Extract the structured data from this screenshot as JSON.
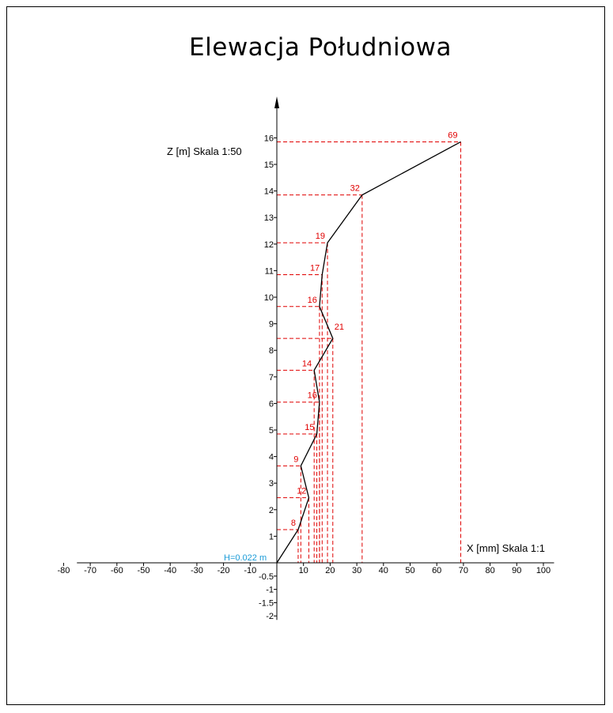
{
  "chart_data": {
    "type": "line",
    "title": "Elewacja Południowa",
    "xlabel": "X [mm] Skala 1:1",
    "ylabel": "Z [m] Skala 1:50",
    "xlim": [
      -80,
      100
    ],
    "ylim": [
      -2,
      16
    ],
    "xticks": [
      -80,
      -70,
      -60,
      -50,
      -40,
      -30,
      -20,
      -10,
      0,
      10,
      20,
      30,
      40,
      50,
      60,
      70,
      80,
      90,
      100
    ],
    "yticks": [
      -2,
      -1.5,
      -1,
      -0.5,
      1,
      2,
      3,
      4,
      5,
      6,
      7,
      8,
      9,
      10,
      11,
      12,
      13,
      14,
      15,
      16
    ],
    "height_annotation": "H=0.022 m",
    "profile": {
      "x": [
        0,
        8,
        12,
        9,
        15,
        16,
        14,
        21,
        16,
        17,
        19,
        32,
        69
      ],
      "z": [
        0,
        1.25,
        2.45,
        3.65,
        4.85,
        6.05,
        7.25,
        8.45,
        9.65,
        10.85,
        12.05,
        13.85,
        15.85
      ]
    },
    "point_labels": [
      "8",
      "12",
      "9",
      "15",
      "16",
      "14",
      "21",
      "16",
      "17",
      "19",
      "32",
      "69"
    ],
    "grid": false,
    "colors": {
      "line": "#000000",
      "projection": "#e00000",
      "labels": "#e00000",
      "annotation": "#1a9bd7"
    }
  }
}
